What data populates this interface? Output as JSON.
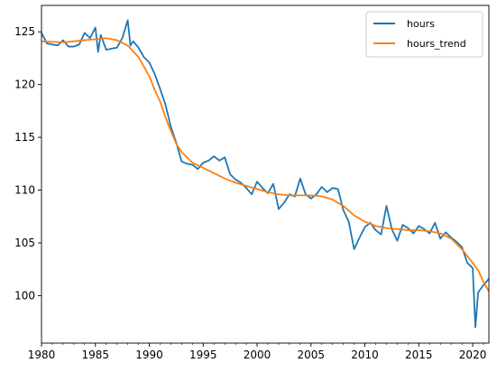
{
  "chart_data": {
    "type": "line",
    "title": "",
    "xlabel": "",
    "ylabel": "",
    "xlim": [
      1980,
      2021.5
    ],
    "ylim": [
      95.5,
      127.5
    ],
    "grid": false,
    "legend_position": "top-right",
    "x_ticks": [
      1980,
      1985,
      1990,
      1995,
      2000,
      2005,
      2010,
      2015,
      2020
    ],
    "x_tick_labels": [
      "1980",
      "1985",
      "1990",
      "1995",
      "2000",
      "2005",
      "2010",
      "2015",
      "2020"
    ],
    "y_ticks": [
      100,
      105,
      110,
      115,
      120,
      125
    ],
    "y_tick_labels": [
      "100",
      "105",
      "110",
      "115",
      "120",
      "125"
    ],
    "series": [
      {
        "name": "hours",
        "color": "#1f77b4",
        "x": [
          1980,
          1980.5,
          1981,
          1981.5,
          1982,
          1982.5,
          1983,
          1983.5,
          1984,
          1984.5,
          1985,
          1985.25,
          1985.5,
          1986,
          1986.5,
          1987,
          1987.5,
          1988,
          1988.25,
          1988.5,
          1989,
          1989.5,
          1990,
          1990.5,
          1991,
          1991.5,
          1992,
          1992.5,
          1993,
          1993.5,
          1994,
          1994.5,
          1995,
          1995.5,
          1996,
          1996.5,
          1997,
          1997.5,
          1998,
          1998.5,
          1999,
          1999.5,
          2000,
          2000.5,
          2001,
          2001.5,
          2002,
          2002.5,
          2003,
          2003.5,
          2004,
          2004.5,
          2005,
          2005.5,
          2006,
          2006.5,
          2007,
          2007.5,
          2008,
          2008.5,
          2009,
          2009.5,
          2010,
          2010.5,
          2011,
          2011.5,
          2012,
          2012.5,
          2013,
          2013.5,
          2014,
          2014.5,
          2015,
          2015.5,
          2016,
          2016.5,
          2017,
          2017.5,
          2018,
          2018.5,
          2019,
          2019.5,
          2020,
          2020.25,
          2020.5,
          2021,
          2021.5
        ],
        "values": [
          124.9,
          123.9,
          123.8,
          123.7,
          124.2,
          123.6,
          123.6,
          123.8,
          124.9,
          124.4,
          125.4,
          123.1,
          124.7,
          123.3,
          123.4,
          123.5,
          124.4,
          126.1,
          123.7,
          124.1,
          123.5,
          122.6,
          122.1,
          121.0,
          119.6,
          118.1,
          116.0,
          114.5,
          112.7,
          112.5,
          112.4,
          112.0,
          112.6,
          112.8,
          113.2,
          112.8,
          113.1,
          111.5,
          111.0,
          110.7,
          110.2,
          109.6,
          110.8,
          110.2,
          109.7,
          110.6,
          108.2,
          108.8,
          109.6,
          109.4,
          111.1,
          109.6,
          109.2,
          109.6,
          110.3,
          109.8,
          110.2,
          110.1,
          108.1,
          107.0,
          104.4,
          105.5,
          106.5,
          106.9,
          106.2,
          105.8,
          108.5,
          106.3,
          105.2,
          106.7,
          106.4,
          105.9,
          106.6,
          106.3,
          105.9,
          106.9,
          105.4,
          106.0,
          105.5,
          105.1,
          104.6,
          103.1,
          102.6,
          97.0,
          100.3,
          101.0,
          101.6
        ]
      },
      {
        "name": "hours_trend",
        "color": "#ff7f0e",
        "x": [
          1980,
          1982,
          1984,
          1985,
          1986,
          1987,
          1988,
          1989,
          1990,
          1990.5,
          1991,
          1991.5,
          1992,
          1992.5,
          1993,
          1994,
          1995,
          1996,
          1997,
          1998,
          1999,
          2000,
          2001,
          2002,
          2003,
          2004,
          2005,
          2006,
          2007,
          2008,
          2009,
          2010,
          2011,
          2012,
          2013,
          2014,
          2015,
          2016,
          2017,
          2018,
          2019,
          2020,
          2020.5,
          2021,
          2021.5
        ],
        "values": [
          124.1,
          124.0,
          124.2,
          124.3,
          124.4,
          124.2,
          123.7,
          122.6,
          120.8,
          119.5,
          118.4,
          116.9,
          115.6,
          114.4,
          113.6,
          112.6,
          112.1,
          111.6,
          111.1,
          110.7,
          110.4,
          110.1,
          109.8,
          109.6,
          109.5,
          109.5,
          109.5,
          109.4,
          109.1,
          108.5,
          107.6,
          107.0,
          106.6,
          106.4,
          106.3,
          106.2,
          106.2,
          106.1,
          105.9,
          105.4,
          104.4,
          103.1,
          102.4,
          101.3,
          100.4
        ]
      }
    ]
  }
}
